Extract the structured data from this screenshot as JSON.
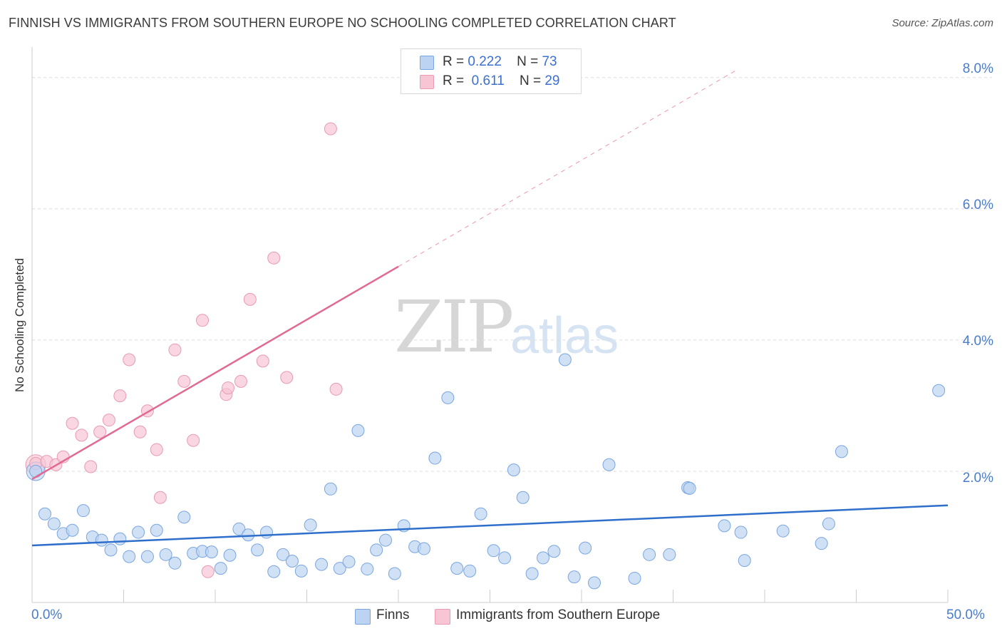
{
  "title": "FINNISH VS IMMIGRANTS FROM SOUTHERN EUROPE NO SCHOOLING COMPLETED CORRELATION CHART",
  "source": "Source: ZipAtlas.com",
  "watermark": {
    "zip": "ZIP",
    "atlas": "atlas"
  },
  "legend": {
    "finns": {
      "r_label": "R =",
      "r_value": "0.222",
      "n_label": "N =",
      "n_value": "73"
    },
    "immigrants": {
      "r_label": "R =",
      "r_value": "0.611",
      "n_label": "N =",
      "n_value": "29"
    }
  },
  "bottom_legend": {
    "finns": "Finns",
    "immigrants": "Immigrants from Southern Europe"
  },
  "colors": {
    "finns_fill": "#bcd4f2",
    "finns_stroke": "#7aa6df",
    "finns_line": "#2f6fcc",
    "imm_fill": "#f7c5d4",
    "imm_stroke": "#e89bb3",
    "imm_line": "#e06a93",
    "grid": "#dddddd",
    "tick_text": "#4a7cc9"
  },
  "chart_data": {
    "type": "scatter",
    "title": "FINNISH VS IMMIGRANTS FROM SOUTHERN EUROPE NO SCHOOLING COMPLETED CORRELATION CHART",
    "xlabel": "",
    "ylabel": "No Schooling Completed",
    "xlim": [
      0,
      50
    ],
    "ylim": [
      0,
      8.4
    ],
    "x_tick_labels": [
      "0.0%",
      "50.0%"
    ],
    "y_ticks": [
      2,
      4,
      6,
      8
    ],
    "y_tick_labels": [
      "2.0%",
      "4.0%",
      "6.0%",
      "8.0%"
    ],
    "grid": "horizontal dashed",
    "legend_position": "top-center",
    "series": [
      {
        "name": "Finns",
        "R": 0.222,
        "N": 73,
        "trend": {
          "x": [
            0,
            50
          ],
          "y": [
            0.87,
            1.48
          ]
        },
        "points": [
          [
            0.2,
            2.0
          ],
          [
            0.7,
            1.35
          ],
          [
            1.2,
            1.2
          ],
          [
            1.7,
            1.05
          ],
          [
            2.2,
            1.1
          ],
          [
            2.8,
            1.4
          ],
          [
            3.3,
            1.0
          ],
          [
            3.8,
            0.95
          ],
          [
            4.3,
            0.8
          ],
          [
            4.8,
            0.97
          ],
          [
            5.3,
            0.7
          ],
          [
            5.8,
            1.07
          ],
          [
            6.3,
            0.7
          ],
          [
            6.8,
            1.1
          ],
          [
            7.3,
            0.73
          ],
          [
            7.8,
            0.6
          ],
          [
            8.3,
            1.3
          ],
          [
            8.8,
            0.75
          ],
          [
            9.3,
            0.78
          ],
          [
            9.8,
            0.77
          ],
          [
            10.3,
            0.52
          ],
          [
            10.8,
            0.72
          ],
          [
            11.3,
            1.12
          ],
          [
            11.8,
            1.03
          ],
          [
            12.3,
            0.8
          ],
          [
            12.8,
            1.07
          ],
          [
            13.2,
            0.47
          ],
          [
            13.7,
            0.73
          ],
          [
            14.2,
            0.63
          ],
          [
            14.7,
            0.48
          ],
          [
            15.2,
            1.18
          ],
          [
            15.8,
            0.58
          ],
          [
            16.3,
            1.73
          ],
          [
            16.8,
            0.52
          ],
          [
            17.3,
            0.62
          ],
          [
            17.8,
            2.62
          ],
          [
            18.3,
            0.51
          ],
          [
            18.8,
            0.8
          ],
          [
            19.3,
            0.95
          ],
          [
            19.8,
            0.44
          ],
          [
            20.3,
            1.17
          ],
          [
            20.9,
            0.85
          ],
          [
            21.4,
            0.82
          ],
          [
            22.0,
            2.2
          ],
          [
            22.7,
            3.12
          ],
          [
            23.2,
            0.52
          ],
          [
            23.9,
            0.48
          ],
          [
            24.5,
            1.35
          ],
          [
            25.2,
            0.79
          ],
          [
            25.8,
            0.68
          ],
          [
            26.3,
            2.02
          ],
          [
            26.8,
            1.6
          ],
          [
            27.3,
            0.44
          ],
          [
            27.9,
            0.68
          ],
          [
            28.5,
            0.78
          ],
          [
            29.1,
            3.7
          ],
          [
            29.6,
            0.39
          ],
          [
            30.2,
            0.83
          ],
          [
            30.7,
            0.3
          ],
          [
            31.5,
            2.1
          ],
          [
            32.9,
            0.37
          ],
          [
            33.7,
            0.73
          ],
          [
            34.8,
            0.73
          ],
          [
            35.8,
            1.75
          ],
          [
            35.9,
            1.74
          ],
          [
            37.8,
            1.17
          ],
          [
            38.7,
            1.07
          ],
          [
            38.9,
            0.64
          ],
          [
            41.0,
            1.09
          ],
          [
            43.1,
            0.9
          ],
          [
            43.5,
            1.2
          ],
          [
            44.2,
            2.3
          ],
          [
            49.5,
            3.23
          ]
        ]
      },
      {
        "name": "Immigrants from Southern Europe",
        "R": 0.611,
        "N": 29,
        "trend": {
          "x": [
            0,
            20
          ],
          "y": [
            1.88,
            5.12
          ],
          "dashed_extension": {
            "x": [
              20,
              38.5
            ],
            "y": [
              5.12,
              8.12
            ]
          }
        },
        "points": [
          [
            0.2,
            2.12
          ],
          [
            0.8,
            2.15
          ],
          [
            1.3,
            2.1
          ],
          [
            1.7,
            2.22
          ],
          [
            2.2,
            2.73
          ],
          [
            2.7,
            2.55
          ],
          [
            3.2,
            2.07
          ],
          [
            3.7,
            2.6
          ],
          [
            4.2,
            2.78
          ],
          [
            4.8,
            3.15
          ],
          [
            5.3,
            3.7
          ],
          [
            5.9,
            2.6
          ],
          [
            6.3,
            2.92
          ],
          [
            6.8,
            2.33
          ],
          [
            7.0,
            1.6
          ],
          [
            7.8,
            3.85
          ],
          [
            8.3,
            3.37
          ],
          [
            8.8,
            2.47
          ],
          [
            9.3,
            4.3
          ],
          [
            9.6,
            0.47
          ],
          [
            10.6,
            3.17
          ],
          [
            10.7,
            3.27
          ],
          [
            11.4,
            3.37
          ],
          [
            11.9,
            4.62
          ],
          [
            12.6,
            3.68
          ],
          [
            13.2,
            5.25
          ],
          [
            13.9,
            3.43
          ],
          [
            16.3,
            7.22
          ],
          [
            16.6,
            3.25
          ]
        ]
      }
    ]
  }
}
